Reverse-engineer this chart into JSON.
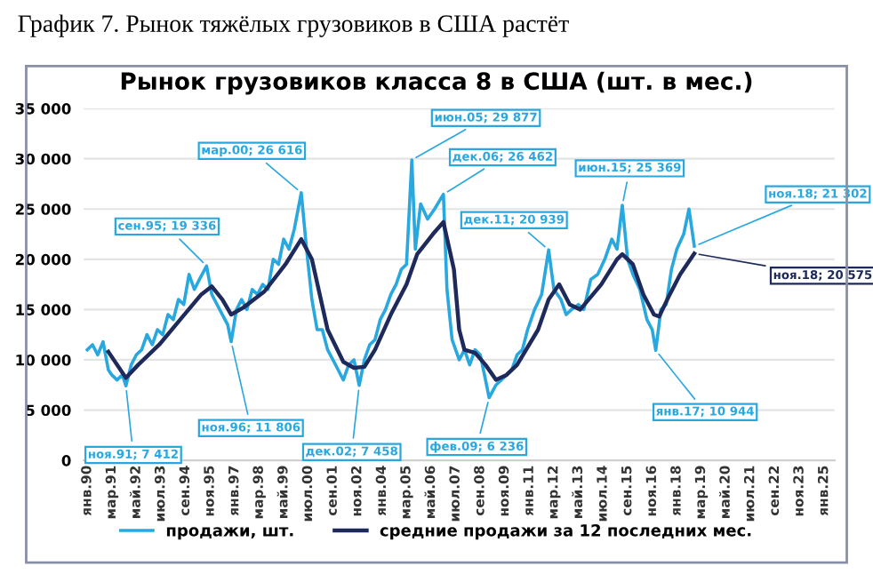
{
  "chart_data": {
    "type": "line",
    "title": "График 7. Рынок тяжёлых грузовиков в США растёт",
    "subtitle": "Рынок грузовиков класса 8 в США (шт. в мес.)",
    "series": [
      {
        "name": "продажи, шт.",
        "color": "#29a8e0",
        "x": [
          "1990-01",
          "1990-04",
          "1990-07",
          "1990-10",
          "1991-01",
          "1991-03",
          "1991-06",
          "1991-09",
          "1991-11",
          "1992-02",
          "1992-05",
          "1992-08",
          "1992-11",
          "1993-02",
          "1993-05",
          "1993-08",
          "1993-11",
          "1994-02",
          "1994-05",
          "1994-08",
          "1994-11",
          "1995-02",
          "1995-05",
          "1995-09",
          "1995-12",
          "1996-03",
          "1996-06",
          "1996-09",
          "1996-11",
          "1997-02",
          "1997-05",
          "1997-08",
          "1997-11",
          "1998-02",
          "1998-05",
          "1998-08",
          "1998-11",
          "1999-02",
          "1999-05",
          "1999-08",
          "1999-11",
          "2000-03",
          "2000-06",
          "2000-09",
          "2000-12",
          "2001-03",
          "2001-06",
          "2001-09",
          "2001-12",
          "2002-03",
          "2002-06",
          "2002-09",
          "2002-12",
          "2003-03",
          "2003-06",
          "2003-09",
          "2003-12",
          "2004-03",
          "2004-06",
          "2004-09",
          "2004-12",
          "2005-03",
          "2005-06",
          "2005-08",
          "2005-11",
          "2006-03",
          "2006-07",
          "2006-12",
          "2007-02",
          "2007-05",
          "2007-09",
          "2007-12",
          "2008-03",
          "2008-06",
          "2008-09",
          "2008-12",
          "2009-02",
          "2009-06",
          "2009-09",
          "2009-12",
          "2010-03",
          "2010-06",
          "2010-09",
          "2010-12",
          "2011-04",
          "2011-08",
          "2011-12",
          "2012-03",
          "2012-07",
          "2012-10",
          "2013-01",
          "2013-05",
          "2013-08",
          "2013-12",
          "2014-04",
          "2014-08",
          "2014-12",
          "2015-03",
          "2015-06",
          "2015-09",
          "2015-12",
          "2016-04",
          "2016-08",
          "2016-11",
          "2017-01",
          "2017-04",
          "2017-07",
          "2017-10",
          "2018-01",
          "2018-05",
          "2018-08",
          "2018-11"
        ],
        "values": [
          11000,
          11500,
          10500,
          11800,
          9000,
          8500,
          8000,
          8500,
          7412,
          9500,
          10500,
          11000,
          12500,
          11500,
          13000,
          12500,
          14500,
          14000,
          16000,
          15500,
          18500,
          17000,
          18000,
          19336,
          16500,
          15500,
          14500,
          13500,
          11806,
          15000,
          16000,
          15000,
          17000,
          16500,
          17500,
          17000,
          20000,
          19500,
          22000,
          21000,
          23000,
          26616,
          21000,
          16000,
          13000,
          13000,
          11000,
          10000,
          9000,
          8000,
          9500,
          10000,
          7458,
          10000,
          11500,
          12000,
          14000,
          15000,
          16500,
          17500,
          19000,
          19500,
          29877,
          21000,
          25500,
          24000,
          25000,
          26462,
          17000,
          12000,
          10000,
          11000,
          9500,
          11000,
          10500,
          8000,
          6236,
          7500,
          8000,
          8500,
          9000,
          10500,
          11000,
          13000,
          15000,
          16500,
          20939,
          17000,
          16000,
          14500,
          15000,
          15500,
          15000,
          18000,
          18500,
          20000,
          22000,
          21000,
          25369,
          20000,
          18500,
          17000,
          14000,
          13000,
          10944,
          15000,
          15500,
          19000,
          21000,
          22500,
          25000,
          21302
        ]
      },
      {
        "name": "средние продажи за 12 последних мес.",
        "color": "#1f2a5c",
        "x": [
          "1991-01",
          "1991-11",
          "1992-06",
          "1993-06",
          "1994-06",
          "1995-06",
          "1995-12",
          "1996-06",
          "1996-11",
          "1997-06",
          "1998-06",
          "1999-06",
          "2000-03",
          "2000-09",
          "2001-06",
          "2002-03",
          "2002-09",
          "2003-03",
          "2003-09",
          "2004-06",
          "2005-03",
          "2005-09",
          "2006-06",
          "2006-12",
          "2007-06",
          "2007-09",
          "2007-12",
          "2008-06",
          "2008-12",
          "2009-06",
          "2009-12",
          "2010-06",
          "2011-06",
          "2011-12",
          "2012-06",
          "2012-12",
          "2013-06",
          "2014-06",
          "2015-03",
          "2015-06",
          "2015-12",
          "2016-06",
          "2016-12",
          "2017-03",
          "2017-09",
          "2018-03",
          "2018-11"
        ],
        "values": [
          10800,
          8200,
          9500,
          11500,
          14000,
          16500,
          17300,
          16000,
          14500,
          15200,
          16800,
          19500,
          22000,
          20000,
          13000,
          9800,
          9200,
          9300,
          11000,
          14500,
          17500,
          20500,
          22500,
          23700,
          19000,
          13000,
          11000,
          10700,
          9500,
          8000,
          8500,
          9500,
          13000,
          16000,
          17500,
          15500,
          15000,
          17500,
          20000,
          20500,
          19500,
          16500,
          14500,
          14300,
          16500,
          18500,
          20575
        ]
      }
    ],
    "annotations": [
      {
        "text": "ноя.91; 7 412",
        "x": "1991-11",
        "y": 7412
      },
      {
        "text": "сен.95; 19 336",
        "x": "1995-09",
        "y": 19336
      },
      {
        "text": "ноя.96; 11 806",
        "x": "1996-11",
        "y": 11806
      },
      {
        "text": "мар.00; 26 616",
        "x": "2000-03",
        "y": 26616
      },
      {
        "text": "дек.02; 7 458",
        "x": "2002-12",
        "y": 7458
      },
      {
        "text": "июн.05; 29 877",
        "x": "2005-06",
        "y": 29877
      },
      {
        "text": "дек.06; 26 462",
        "x": "2006-12",
        "y": 26462
      },
      {
        "text": "фев.09; 6 236",
        "x": "2009-02",
        "y": 6236
      },
      {
        "text": "дек.11; 20 939",
        "x": "2011-12",
        "y": 20939
      },
      {
        "text": "июн.15; 25 369",
        "x": "2015-06",
        "y": 25369
      },
      {
        "text": "янв.17; 10 944",
        "x": "2017-01",
        "y": 10944
      },
      {
        "text": "ноя.18; 21 302",
        "x": "2018-11",
        "y": 21302
      },
      {
        "text": "ноя.18; 20 575",
        "x": "2018-11",
        "y": 20575
      }
    ],
    "xlim": [
      "1989-11",
      "2025-07"
    ],
    "xticks": [
      {
        "value": "1990-01",
        "label": "янв.90"
      },
      {
        "value": "1991-03",
        "label": "мар.91"
      },
      {
        "value": "1992-05",
        "label": "май.92"
      },
      {
        "value": "1993-07",
        "label": "июл.93"
      },
      {
        "value": "1994-09",
        "label": "сен.94"
      },
      {
        "value": "1995-11",
        "label": "ноя.95"
      },
      {
        "value": "1997-01",
        "label": "янв.97"
      },
      {
        "value": "1998-03",
        "label": "мар.98"
      },
      {
        "value": "1999-05",
        "label": "май.99"
      },
      {
        "value": "2000-07",
        "label": "июл.00"
      },
      {
        "value": "2001-09",
        "label": "сен.01"
      },
      {
        "value": "2002-11",
        "label": "ноя.02"
      },
      {
        "value": "2004-01",
        "label": "янв.04"
      },
      {
        "value": "2005-03",
        "label": "мар.05"
      },
      {
        "value": "2006-05",
        "label": "май.06"
      },
      {
        "value": "2007-07",
        "label": "июл.07"
      },
      {
        "value": "2008-09",
        "label": "сен.08"
      },
      {
        "value": "2009-11",
        "label": "ноя.09"
      },
      {
        "value": "2011-01",
        "label": "янв.11"
      },
      {
        "value": "2012-03",
        "label": "мар.12"
      },
      {
        "value": "2013-05",
        "label": "май.13"
      },
      {
        "value": "2014-07",
        "label": "июл.14"
      },
      {
        "value": "2015-09",
        "label": "сен.15"
      },
      {
        "value": "2016-11",
        "label": "ноя.16"
      },
      {
        "value": "2018-01",
        "label": "янв.18"
      },
      {
        "value": "2019-03",
        "label": "мар.19"
      },
      {
        "value": "2020-05",
        "label": "май.20"
      },
      {
        "value": "2021-07",
        "label": "июл.21"
      },
      {
        "value": "2022-09",
        "label": "сен.22"
      },
      {
        "value": "2023-11",
        "label": "ноя.23"
      },
      {
        "value": "2025-01",
        "label": "янв.25"
      }
    ],
    "ylim": [
      0,
      35000
    ],
    "yticks": [
      0,
      {
        "value": 5000,
        "label": "5 000"
      },
      {
        "value": 10000,
        "label": "10 000"
      },
      {
        "value": 15000,
        "label": "15 000"
      },
      {
        "value": 20000,
        "label": "20 000"
      },
      {
        "value": 25000,
        "label": "25 000"
      },
      {
        "value": 30000,
        "label": "30 000"
      },
      {
        "value": 35000,
        "label": "35 000"
      }
    ],
    "grid": "y",
    "legend": "bottom",
    "marker": "none",
    "line_style": "solid"
  }
}
